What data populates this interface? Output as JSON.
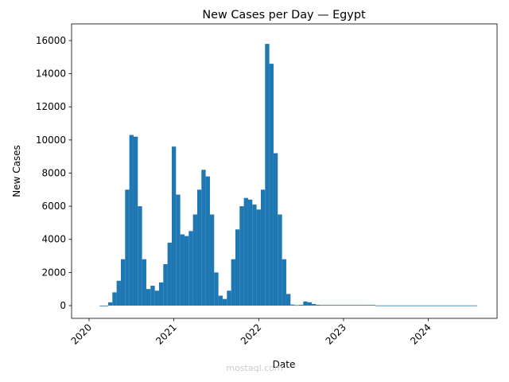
{
  "chart_data": {
    "type": "bar",
    "title": "New Cases per Day — Egypt",
    "x_label": "Date",
    "y_label": "New Cases",
    "color": "#1f77b4",
    "watermark": "mostaql.com",
    "x": [
      2020.15,
      2020.2,
      2020.25,
      2020.3,
      2020.35,
      2020.4,
      2020.45,
      2020.5,
      2020.55,
      2020.6,
      2020.65,
      2020.7,
      2020.75,
      2020.8,
      2020.85,
      2020.9,
      2020.95,
      2021.0,
      2021.05,
      2021.1,
      2021.15,
      2021.2,
      2021.25,
      2021.3,
      2021.35,
      2021.4,
      2021.45,
      2021.5,
      2021.55,
      2021.6,
      2021.65,
      2021.7,
      2021.75,
      2021.8,
      2021.85,
      2021.9,
      2021.95,
      2022.0,
      2022.05,
      2022.1,
      2022.15,
      2022.2,
      2022.25,
      2022.3,
      2022.35,
      2022.4,
      2022.45,
      2022.5,
      2022.55,
      2022.6,
      2022.65,
      2022.7,
      2022.75,
      2022.8,
      2022.85,
      2022.9,
      2022.95,
      2023.0,
      2023.05,
      2023.1,
      2023.15,
      2023.2,
      2023.25,
      2023.3,
      2023.35,
      2023.4,
      2023.45,
      2023.5,
      2023.55,
      2023.6,
      2023.65,
      2023.7,
      2023.75,
      2023.8,
      2023.85,
      2023.9,
      2023.95,
      2024.0,
      2024.05,
      2024.1,
      2024.15,
      2024.2,
      2024.25,
      2024.3,
      2024.35,
      2024.4,
      2024.45,
      2024.5,
      2024.55
    ],
    "values": [
      0,
      0,
      200,
      800,
      1500,
      2800,
      7000,
      10300,
      10200,
      6000,
      2800,
      1000,
      1200,
      900,
      1400,
      2500,
      3800,
      9600,
      6700,
      4300,
      4200,
      4500,
      5500,
      7000,
      8200,
      7800,
      5500,
      2000,
      600,
      400,
      900,
      2800,
      4600,
      6000,
      6500,
      6400,
      6100,
      5800,
      7000,
      15800,
      14600,
      9200,
      5500,
      2800,
      700,
      60,
      30,
      50,
      250,
      200,
      100,
      50,
      40,
      40,
      40,
      40,
      40,
      40,
      40,
      40,
      40,
      40,
      40,
      40,
      40,
      10,
      10,
      10,
      10,
      10,
      10,
      10,
      10,
      10,
      10,
      10,
      10,
      10,
      10,
      10,
      10,
      10,
      10,
      10,
      10,
      10,
      10,
      10,
      10
    ],
    "xlim": [
      2019.794,
      2024.81
    ],
    "xticks": [
      2020,
      2021,
      2022,
      2023,
      2024
    ],
    "ylim": [
      -769,
      17009
    ],
    "yticks": [
      0,
      2000,
      4000,
      6000,
      8000,
      10000,
      12000,
      14000,
      16000
    ]
  }
}
